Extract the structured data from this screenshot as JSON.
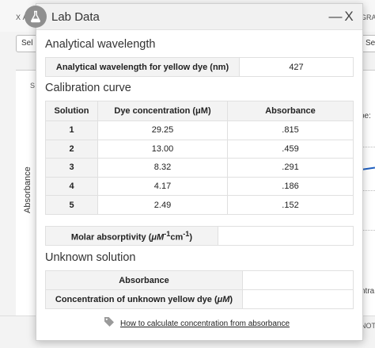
{
  "background": {
    "top_left_label": "X A",
    "top_right_label": "GRA",
    "select_left": "Sel",
    "select_right": "Se",
    "s_label": "S",
    "yaxis_label": "Absorbance",
    "pe_label": "pe:",
    "ntra_label": "ntra",
    "not_label": "NOT"
  },
  "dialog": {
    "title": "Lab Data",
    "minimize_label": "—",
    "close_label": "X",
    "icon": "flask-icon"
  },
  "wavelength": {
    "section_title": "Analytical wavelength",
    "label": "Analytical wavelength for yellow dye (nm)",
    "value": "427"
  },
  "calibration": {
    "section_title": "Calibration curve",
    "headers": [
      "Solution",
      "Dye concentration (μM)",
      "Absorbance"
    ],
    "rows": [
      {
        "solution": "1",
        "concentration": "29.25",
        "absorbance": ".815"
      },
      {
        "solution": "2",
        "concentration": "13.00",
        "absorbance": ".459"
      },
      {
        "solution": "3",
        "concentration": "8.32",
        "absorbance": ".291"
      },
      {
        "solution": "4",
        "concentration": "4.17",
        "absorbance": ".186"
      },
      {
        "solution": "5",
        "concentration": "2.49",
        "absorbance": ".152"
      }
    ]
  },
  "molar": {
    "label_prefix": "Molar absorptivity (",
    "label_unit_mu": "μM",
    "label_sup1": "-1",
    "label_cm": "cm",
    "label_sup2": "-1",
    "label_suffix": ")",
    "value": ""
  },
  "unknown": {
    "section_title": "Unknown solution",
    "absorbance_label": "Absorbance",
    "absorbance_value": "",
    "concentration_label_prefix": "Concentration of unknown yellow dye (",
    "concentration_label_unit": "μM",
    "concentration_label_suffix": ")",
    "concentration_value": ""
  },
  "help": {
    "icon": "tag-icon",
    "link_text": "How to calculate concentration from absorbance"
  },
  "colors": {
    "header_bg": "#f1f1f1",
    "label_bg": "#f3f3f3",
    "badge": "#8f8f8f",
    "series_line": "#1f5fbf"
  }
}
